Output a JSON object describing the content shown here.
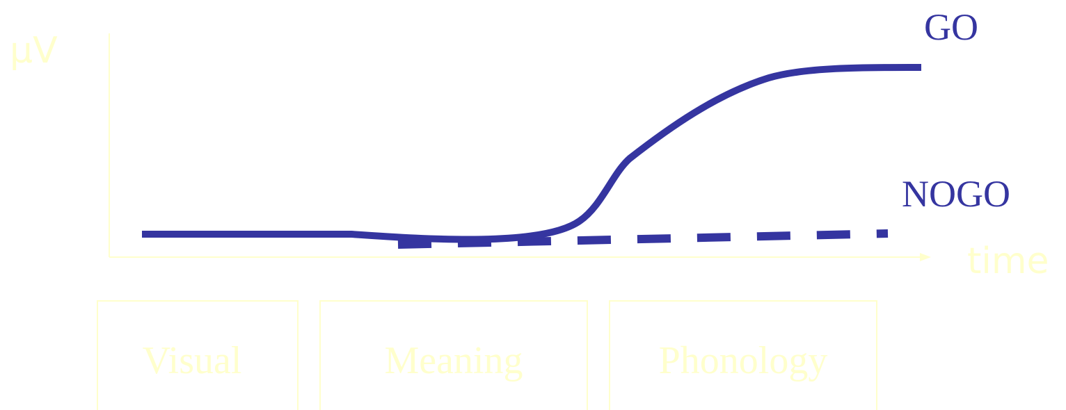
{
  "axes": {
    "y_label": "μV",
    "x_label": "time"
  },
  "curves": {
    "go_label": "GO",
    "nogo_label": "NOGO"
  },
  "stages": [
    {
      "label": "Visual"
    },
    {
      "label": "Meaning"
    },
    {
      "label": "Phonology"
    }
  ],
  "colors": {
    "curve": "#3535a0",
    "pale_text": "#ffffcc",
    "axis": "#ffffcc",
    "box_border": "#ffffcc",
    "background": "#ffffff"
  }
}
